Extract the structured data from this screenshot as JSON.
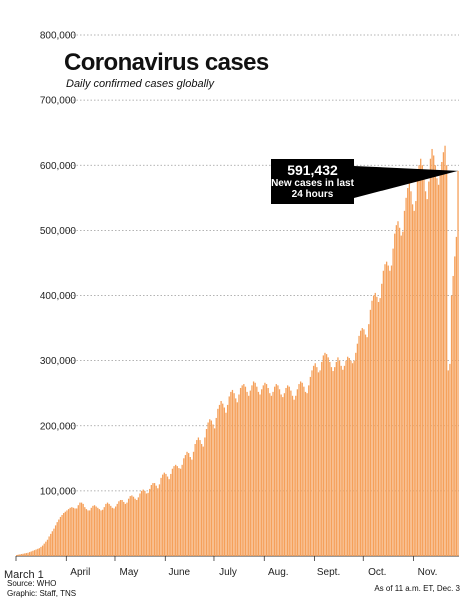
{
  "chart_data": {
    "type": "bar",
    "title": "Coronavirus cases",
    "subtitle": "Daily confirmed cases globally",
    "xlabel": "",
    "ylabel": "",
    "ylim": [
      0,
      800000
    ],
    "yticks": [
      100000,
      200000,
      300000,
      400000,
      500000,
      600000,
      700000,
      800000
    ],
    "ytick_labels": [
      "100,000",
      "200,000",
      "300,000",
      "400,000",
      "500,000",
      "600,000",
      "700,000",
      "800,000"
    ],
    "xticks": [
      {
        "label": "March 1",
        "day": 0
      },
      {
        "label": "April",
        "day": 31
      },
      {
        "label": "May",
        "day": 61
      },
      {
        "label": "June",
        "day": 92
      },
      {
        "label": "July",
        "day": 122
      },
      {
        "label": "Aug.",
        "day": 153
      },
      {
        "label": "Sept.",
        "day": 184
      },
      {
        "label": "Oct.",
        "day": 214
      },
      {
        "label": "Nov.",
        "day": 245
      }
    ],
    "grid": true,
    "bar_color": "#f5a05a",
    "series": [
      {
        "values": [
          1500,
          2000,
          2500,
          3000,
          3500,
          4000,
          4500,
          5000,
          6000,
          7000,
          8000,
          9000,
          10000,
          11000,
          12000,
          14000,
          16000,
          19000,
          22000,
          25000,
          30000,
          34000,
          38000,
          42000,
          47000,
          52000,
          56000,
          60000,
          63000,
          66000,
          68000,
          70000,
          72000,
          74000,
          75000,
          74000,
          73000,
          73000,
          78000,
          82000,
          82000,
          80000,
          75000,
          72000,
          70000,
          70000,
          74000,
          77000,
          78000,
          76000,
          74000,
          72000,
          70000,
          71000,
          75000,
          80000,
          82000,
          80000,
          77000,
          74000,
          73000,
          76000,
          80000,
          84000,
          86000,
          86000,
          83000,
          80000,
          82000,
          88000,
          92000,
          93000,
          91000,
          88000,
          86000,
          90000,
          96000,
          100000,
          102000,
          100000,
          96000,
          97000,
          103000,
          109000,
          112000,
          112000,
          108000,
          104000,
          110000,
          120000,
          125000,
          128000,
          126000,
          122000,
          118000,
          126000,
          134000,
          138000,
          140000,
          138000,
          135000,
          134000,
          140000,
          150000,
          155000,
          160000,
          158000,
          152000,
          148000,
          160000,
          172000,
          178000,
          182000,
          178000,
          172000,
          168000,
          182000,
          195000,
          205000,
          210000,
          208000,
          202000,
          196000,
          212000,
          226000,
          232000,
          238000,
          234000,
          228000,
          220000,
          232000,
          245000,
          252000,
          255000,
          250000,
          242000,
          236000,
          248000,
          258000,
          262000,
          264000,
          260000,
          252000,
          246000,
          254000,
          262000,
          268000,
          266000,
          260000,
          252000,
          248000,
          256000,
          262000,
          266000,
          264000,
          258000,
          250000,
          246000,
          252000,
          260000,
          264000,
          262000,
          256000,
          248000,
          244000,
          250000,
          258000,
          262000,
          260000,
          254000,
          246000,
          240000,
          246000,
          256000,
          264000,
          268000,
          266000,
          260000,
          252000,
          250000,
          262000,
          275000,
          285000,
          292000,
          296000,
          290000,
          282000,
          285000,
          298000,
          308000,
          312000,
          310000,
          305000,
          298000,
          290000,
          284000,
          290000,
          298000,
          305000,
          300000,
          292000,
          286000,
          292000,
          300000,
          306000,
          304000,
          300000,
          296000,
          300000,
          312000,
          326000,
          338000,
          346000,
          350000,
          348000,
          340000,
          336000,
          356000,
          378000,
          392000,
          400000,
          404000,
          398000,
          390000,
          396000,
          418000,
          438000,
          448000,
          452000,
          446000,
          438000,
          446000,
          472000,
          495000,
          508000,
          514000,
          504000,
          492000,
          498000,
          530000,
          550000,
          565000,
          575000,
          560000,
          540000,
          530000,
          545000,
          580000,
          600000,
          610000,
          600000,
          585000,
          560000,
          548000,
          575000,
          610000,
          625000,
          615000,
          600000,
          580000,
          570000,
          585000,
          605000,
          620000,
          630000,
          600000,
          285000,
          295000,
          400000,
          430000,
          460000,
          490000,
          591432
        ]
      }
    ],
    "annotation": {
      "value": "591,432",
      "text": "New cases in last 24 hours"
    },
    "source": "Source: WHO",
    "credit": "Graphic: Staff, TNS",
    "as_of": "As of 11 a.m. ET, Dec. 3"
  }
}
